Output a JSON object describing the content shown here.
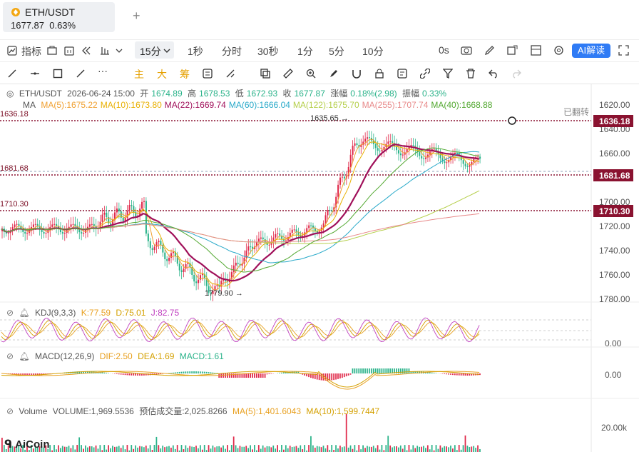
{
  "tab": {
    "symbol": "ETH/USDT",
    "price": "1677.87",
    "change": "0.63%",
    "add": "+"
  },
  "toolbar1": {
    "indicators": "指标",
    "timeframe_selected": "15分",
    "timeframes": [
      "1秒",
      "分时",
      "30秒",
      "1分",
      "5分",
      "10分"
    ],
    "zero_s": "0s",
    "ai": "AI解读"
  },
  "toolbar2": {
    "labels": [
      "主",
      "大",
      "筹"
    ]
  },
  "main_legend": {
    "pair": "ETH/USDT",
    "datetime": "2026-06-24 15:00",
    "open_label": "开",
    "open": "1674.89",
    "high_label": "高",
    "high": "1678.53",
    "low_label": "低",
    "low": "1672.93",
    "close_label": "收",
    "close": "1677.87",
    "chg_label": "涨幅",
    "chg": "0.18%(2.98)",
    "amp_label": "振幅",
    "amp": "0.33%"
  },
  "ma_legend": {
    "name": "MA",
    "items": [
      {
        "label": "MA(5):1675.22",
        "color": "#f0a030"
      },
      {
        "label": "MA(10):1673.80",
        "color": "#e8b000"
      },
      {
        "label": "MA(22):1669.74",
        "color": "#a0105a"
      },
      {
        "label": "MA(60):1666.04",
        "color": "#28a9c9"
      },
      {
        "label": "MA(122):1675.70",
        "color": "#b5cf4a"
      },
      {
        "label": "MA(255):1707.74",
        "color": "#e88a8a"
      },
      {
        "label": "MA(40):1668.88",
        "color": "#52a830"
      }
    ]
  },
  "flipped": "已翻转",
  "price_axis": [
    "1620.00",
    "1640.00",
    "1660.00",
    "1700.00",
    "1720.00",
    "1740.00",
    "1760.00",
    "1780.00"
  ],
  "price_lines": [
    {
      "value": "1636.18",
      "left": "1636.18"
    },
    {
      "value": "1681.68",
      "left": "1681.68"
    },
    {
      "value": "1710.30",
      "left": "1710.30"
    }
  ],
  "annotations": {
    "high": "1635.65 →",
    "low": "1779.90 →"
  },
  "kdj": {
    "name": "KDJ(9,3,3)",
    "k": "K:77.59",
    "d": "D:75.01",
    "j": "J:82.75",
    "axis": "0.00"
  },
  "macd": {
    "name": "MACD(12,26,9)",
    "dif": "DIF:2.50",
    "dea": "DEA:1.69",
    "macd": "MACD:1.61",
    "axis": "0.00"
  },
  "volume": {
    "name": "Volume",
    "vol": "VOLUME:1,969.5536",
    "est": "预估成交量:2,025.8266",
    "ma5": "MA(5):1,401.6043",
    "ma10": "MA(10):1,599.7447",
    "axis": "20.00k"
  },
  "logo": "AiCoin",
  "colors": {
    "up": "#e0294a",
    "down": "#2bb38a",
    "accent": "#2f7bf5",
    "hline": "#8a1230"
  }
}
